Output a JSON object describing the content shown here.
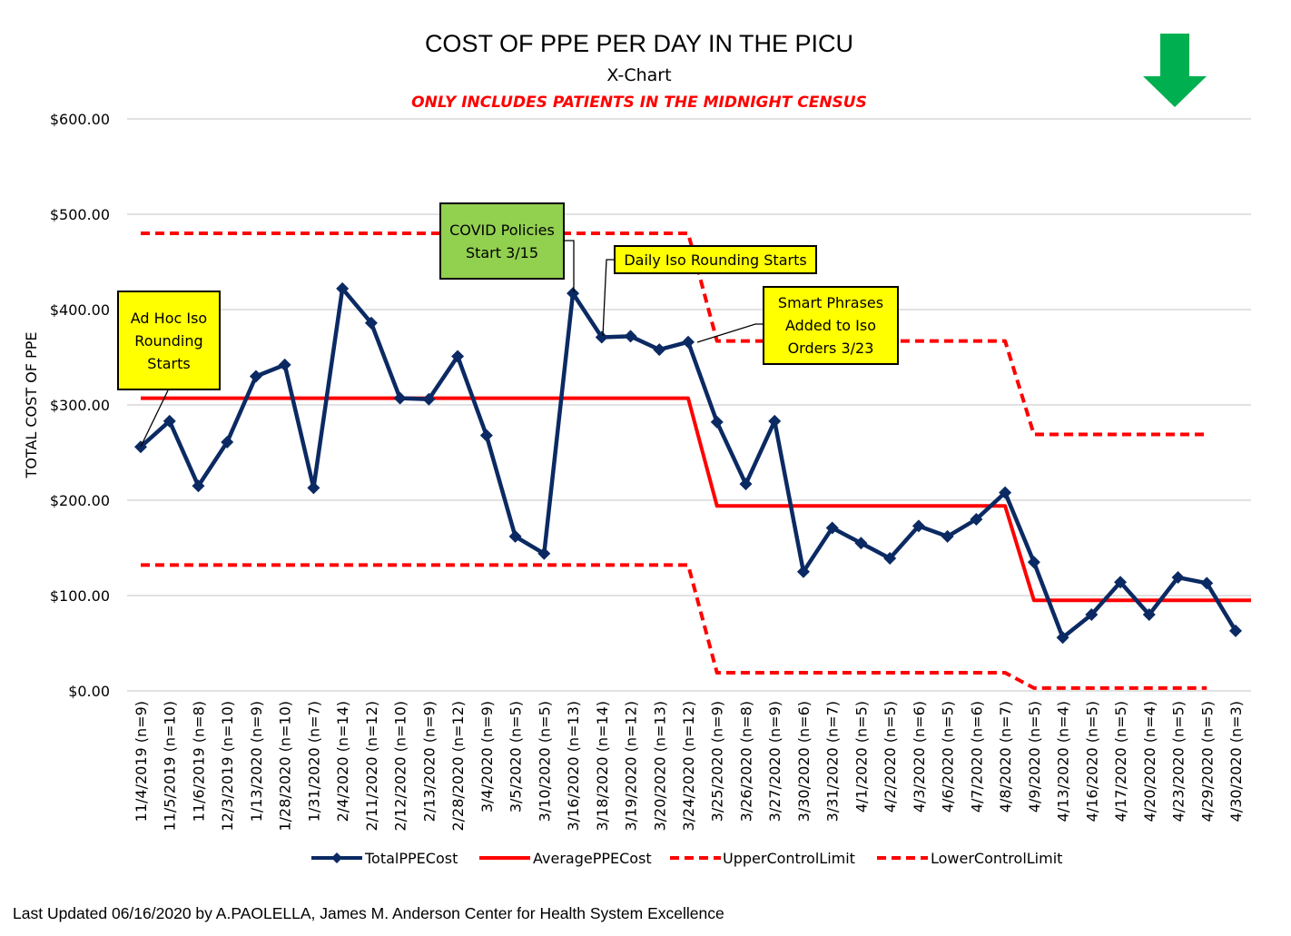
{
  "chart_data": {
    "type": "line",
    "title": "COST OF PPE PER DAY IN THE PICU",
    "subtitle": "X-Chart",
    "note": "ONLY INCLUDES PATIENTS IN THE MIDNIGHT CENSUS",
    "xlabel": "",
    "ylabel": "TOTAL COST OF PPE",
    "ylim": [
      0,
      600
    ],
    "yticks": [
      0,
      100,
      200,
      300,
      400,
      500,
      600
    ],
    "ytick_labels": [
      "$0.00",
      "$100.00",
      "$200.00",
      "$300.00",
      "$400.00",
      "$500.00",
      "$600.00"
    ],
    "grid": "horizontal",
    "legend_position": "bottom",
    "categories": [
      "11/4/2019 (n=9)",
      "11/5/2019 (n=10)",
      "11/6/2019 (n=8)",
      "12/3/2019 (n=10)",
      "1/13/2020 (n=9)",
      "1/28/2020 (n=10)",
      "1/31/2020 (n=7)",
      "2/4/2020 (n=14)",
      "2/11/2020 (n=12)",
      "2/12/2020 (n=10)",
      "2/13/2020 (n=9)",
      "2/28/2020 (n=12)",
      "3/4/2020 (n=9)",
      "3/5/2020 (n=5)",
      "3/10/2020 (n=5)",
      "3/16/2020 (n=13)",
      "3/18/2020 (n=14)",
      "3/19/2020 (n=12)",
      "3/20/2020 (n=13)",
      "3/24/2020 (n=12)",
      "3/25/2020 (n=9)",
      "3/26/2020 (n=8)",
      "3/27/2020 (n=9)",
      "3/30/2020 (n=6)",
      "3/31/2020 (n=7)",
      "4/1/2020 (n=5)",
      "4/2/2020 (n=5)",
      "4/3/2020 (n=6)",
      "4/6/2020 (n=5)",
      "4/7/2020 (n=6)",
      "4/8/2020 (n=7)",
      "4/9/2020 (n=5)",
      "4/13/2020 (n=4)",
      "4/16/2020 (n=5)",
      "4/17/2020 (n=5)",
      "4/20/2020 (n=4)",
      "4/23/2020 (n=5)",
      "4/29/2020 (n=5)",
      "4/30/2020 (n=3)"
    ],
    "series": [
      {
        "name": "TotalPPECost",
        "color": "#0b2a63",
        "style": "solid-with-diamond-markers",
        "values": [
          256,
          283,
          215,
          261,
          330,
          342,
          213,
          422,
          386,
          307,
          306,
          351,
          268,
          162,
          144,
          417,
          371,
          372,
          358,
          366,
          282,
          217,
          283,
          125,
          171,
          155,
          139,
          173,
          162,
          180,
          208,
          135,
          56,
          80,
          114,
          80,
          119,
          113,
          63
        ]
      },
      {
        "name": "AveragePPECost",
        "color": "#ff0000",
        "style": "solid",
        "values": [
          307,
          307,
          307,
          307,
          307,
          307,
          307,
          307,
          307,
          307,
          307,
          307,
          307,
          307,
          307,
          307,
          307,
          307,
          307,
          307,
          194,
          194,
          194,
          194,
          194,
          194,
          194,
          194,
          194,
          194,
          194,
          95,
          95,
          95,
          95,
          95,
          95,
          95,
          95
        ]
      },
      {
        "name": "UpperControlLimit",
        "color": "#ff0000",
        "style": "dashed",
        "values": [
          480,
          480,
          480,
          480,
          480,
          480,
          480,
          480,
          480,
          480,
          480,
          480,
          480,
          480,
          480,
          480,
          480,
          480,
          480,
          480,
          367,
          367,
          367,
          367,
          367,
          367,
          367,
          367,
          367,
          367,
          367,
          269,
          269,
          269,
          269,
          269,
          269,
          269,
          null
        ]
      },
      {
        "name": "LowerControlLimit",
        "color": "#ff0000",
        "style": "dashed",
        "values": [
          132,
          132,
          132,
          132,
          132,
          132,
          132,
          132,
          132,
          132,
          132,
          132,
          132,
          132,
          132,
          132,
          132,
          132,
          132,
          132,
          19,
          19,
          19,
          19,
          19,
          19,
          19,
          19,
          19,
          19,
          19,
          3,
          3,
          3,
          3,
          3,
          3,
          3,
          null
        ]
      }
    ],
    "annotations": [
      {
        "text": "Ad Hoc Iso\nRounding\nStarts",
        "points_to": "11/4/2019 (n=9)",
        "fill": "#ffff00"
      },
      {
        "text": "COVID Policies\nStart 3/15",
        "points_to": "3/16/2020 (n=13)",
        "fill": "#92d050"
      },
      {
        "text": "Daily Iso Rounding Starts",
        "points_to": "3/18/2020 (n=14)",
        "fill": "#ffff00"
      },
      {
        "text": "Smart Phrases\nAdded to Iso\nOrders 3/23",
        "points_to": "3/24/2020 (n=12)",
        "fill": "#ffff00"
      }
    ],
    "indicator": {
      "icon": "down-arrow-icon",
      "meaning": "lower is better",
      "color": "#00b050"
    }
  },
  "footer": "Last Updated 06/16/2020 by A.PAOLELLA, James M. Anderson Center for Health System Excellence"
}
